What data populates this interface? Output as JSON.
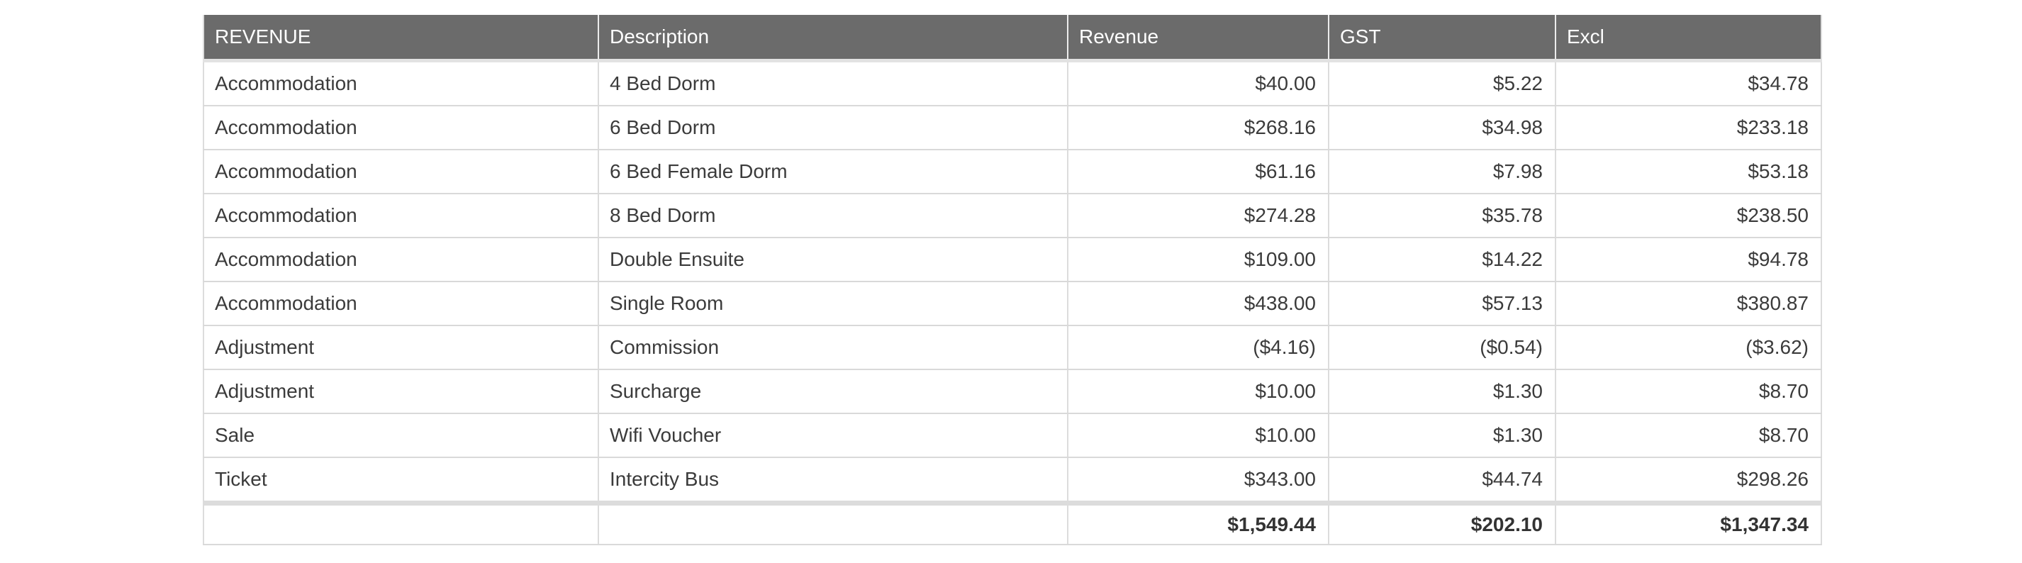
{
  "page": {
    "background": "#ffffff"
  },
  "table": {
    "title": "REVENUE",
    "columns": [
      {
        "key": "category",
        "label": "REVENUE",
        "align": "left"
      },
      {
        "key": "description",
        "label": "Description",
        "align": "left"
      },
      {
        "key": "revenue",
        "label": "Revenue",
        "align": "right"
      },
      {
        "key": "gst",
        "label": "GST",
        "align": "right"
      },
      {
        "key": "excl",
        "label": "Excl",
        "align": "right"
      }
    ],
    "rows": [
      [
        "Accommodation",
        "4 Bed Dorm",
        "$40.00",
        "$5.22",
        "$34.78"
      ],
      [
        "Accommodation",
        "6 Bed Dorm",
        "$268.16",
        "$34.98",
        "$233.18"
      ],
      [
        "Accommodation",
        "6 Bed Female Dorm",
        "$61.16",
        "$7.98",
        "$53.18"
      ],
      [
        "Accommodation",
        "8 Bed Dorm",
        "$274.28",
        "$35.78",
        "$238.50"
      ],
      [
        "Accommodation",
        "Double Ensuite",
        "$109.00",
        "$14.22",
        "$94.78"
      ],
      [
        "Accommodation",
        "Single Room",
        "$438.00",
        "$57.13",
        "$380.87"
      ],
      [
        "Adjustment",
        "Commission",
        "($4.16)",
        "($0.54)",
        "($3.62)"
      ],
      [
        "Adjustment",
        "Surcharge",
        "$10.00",
        "$1.30",
        "$8.70"
      ],
      [
        "Sale",
        "Wifi Voucher",
        "$10.00",
        "$1.30",
        "$8.70"
      ],
      [
        "Ticket",
        "Intercity Bus",
        "$343.00",
        "$44.74",
        "$298.26"
      ]
    ],
    "totals": {
      "revenue": "$1,549.44",
      "gst": "$202.10",
      "excl": "$1,347.34"
    },
    "colors": {
      "header_bg": "#6b6b6b",
      "header_text": "#ffffff",
      "body_text": "#3b3b3b",
      "row_border": "#d9d9d9",
      "totals_separator": "#dcdcdc"
    }
  }
}
